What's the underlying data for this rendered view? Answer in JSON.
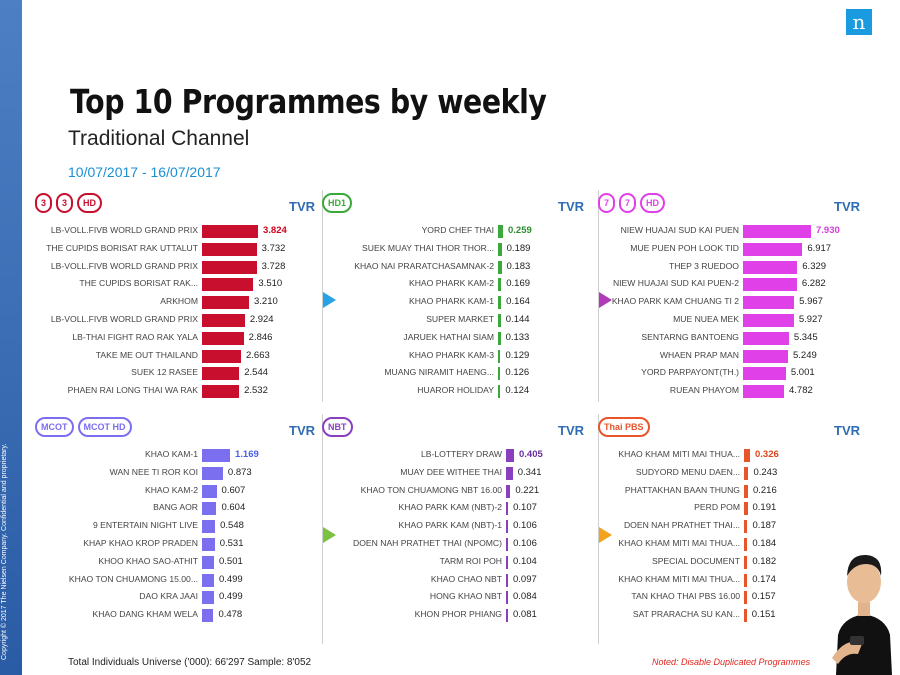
{
  "copyright": "Copyright © 2017 The Nielsen Company. Confidential and proprietary.",
  "brand_logo": "n",
  "title": "Top 10 Programmes by weekly",
  "subtitle": "Traditional Channel",
  "date_range": "10/07/2017 - 16/07/2017",
  "footer_left": "Total Individuals Universe ('000): 66'297 Sample: 8'052",
  "footer_right": "Noted: Disable Duplicated Programmes",
  "chart_data": [
    {
      "type": "bar",
      "channel_logos": [
        "3",
        "3",
        "HD"
      ],
      "value_label": "TVR",
      "color": "#c8102e",
      "first_value_color": "#d0021b",
      "categories": [
        "LB-VOLL.FIVB WORLD GRAND PRIX",
        "THE CUPIDS BORISAT RAK UTTALUT",
        "LB-VOLL.FIVB WORLD GRAND PRIX",
        "THE CUPIDS BORISAT RAK...",
        "ARKHOM",
        "LB-VOLL.FIVB WORLD GRAND PRIX",
        "LB-THAI FIGHT RAO RAK YALA",
        "TAKE ME OUT THAILAND",
        "SUEK 12 RASEE",
        "PHAEN RAI LONG THAI WA RAK"
      ],
      "values": [
        3.824,
        3.732,
        3.728,
        3.51,
        3.21,
        2.924,
        2.846,
        2.663,
        2.544,
        2.532
      ],
      "labels": [
        "3.824",
        "3.732",
        "3.728",
        "3.510",
        "3.210",
        "2.924",
        "2.846",
        "2.663",
        "2.544",
        "2.532"
      ]
    },
    {
      "type": "bar",
      "channel_logos": [
        "HD1"
      ],
      "value_label": "TVR",
      "color": "#3aa83a",
      "first_value_color": "#2e8b2e",
      "categories": [
        "YORD CHEF THAI",
        "SUEK MUAY THAI THOR THOR...",
        "KHAO NAI PRARATCHASAMNAK-2",
        "KHAO PHARK KAM-2",
        "KHAO PHARK KAM-1",
        "SUPER MARKET",
        "JARUEK HATHAI SIAM",
        "KHAO PHARK KAM-3",
        "MUANG NIRAMIT HAENG...",
        "HUAROR HOLIDAY"
      ],
      "values": [
        0.259,
        0.189,
        0.183,
        0.169,
        0.164,
        0.144,
        0.133,
        0.129,
        0.126,
        0.124
      ],
      "labels": [
        "0.259",
        "0.189",
        "0.183",
        "0.169",
        "0.164",
        "0.144",
        "0.133",
        "0.129",
        "0.126",
        "0.124"
      ]
    },
    {
      "type": "bar",
      "channel_logos": [
        "7",
        "7",
        "HD"
      ],
      "value_label": "TVR",
      "color": "#e040e8",
      "first_value_color": "#d43fd9",
      "categories": [
        "NIEW HUAJAI SUD KAI PUEN",
        "MUE PUEN POH LOOK TID",
        "THEP 3 RUEDOO",
        "NIEW HUAJAI SUD KAI PUEN-2",
        "KHAO PARK KAM CHUANG TI 2",
        "MUE NUEA MEK",
        "SENTARNG BANTOENG",
        "WHAEN PRAP MAN",
        "YORD PARPAYONT(TH.)",
        "RUEAN PHAYOM"
      ],
      "values": [
        7.93,
        6.917,
        6.329,
        6.282,
        5.967,
        5.927,
        5.345,
        5.249,
        5.001,
        4.782
      ],
      "labels": [
        "7.930",
        "6.917",
        "6.329",
        "6.282",
        "5.967",
        "5.927",
        "5.345",
        "5.249",
        "5.001",
        "4.782"
      ]
    },
    {
      "type": "bar",
      "channel_logos": [
        "MCOT",
        "MCOT HD"
      ],
      "value_label": "TVR",
      "color": "#7b6ff0",
      "first_value_color": "#4a5ee8",
      "categories": [
        "KHAO KAM-1",
        "WAN NEE TI ROR KOI",
        "KHAO KAM-2",
        "BANG AOR",
        "9 ENTERTAIN NIGHT LIVE",
        "KHAP KHAO KROP PRADEN",
        "KHOO KHAO SAO-ATHIT",
        "KHAO TON CHUAMONG 15.00...",
        "DAO KRA JAAI",
        "KHAO DANG KHAM WELA"
      ],
      "values": [
        1.169,
        0.873,
        0.607,
        0.604,
        0.548,
        0.531,
        0.501,
        0.499,
        0.499,
        0.478
      ],
      "labels": [
        "1.169",
        "0.873",
        "0.607",
        "0.604",
        "0.548",
        "0.531",
        "0.501",
        "0.499",
        "0.499",
        "0.478"
      ]
    },
    {
      "type": "bar",
      "channel_logos": [
        "NBT"
      ],
      "value_label": "TVR",
      "color": "#8a3fbf",
      "first_value_color": "#6a2ea0",
      "categories": [
        "LB-LOTTERY DRAW",
        "MUAY DEE WITHEE THAI",
        "KHAO TON CHUAMONG NBT 16.00",
        "KHAO PARK KAM (NBT)-2",
        "KHAO PARK KAM (NBT)-1",
        "DOEN NAH PRATHET THAI (NPOMC)",
        "TARM ROI POH",
        "KHAO CHAO NBT",
        "HONG KHAO NBT",
        "KHON PHOR PHIANG"
      ],
      "values": [
        0.405,
        0.341,
        0.221,
        0.107,
        0.106,
        0.106,
        0.104,
        0.097,
        0.084,
        0.081
      ],
      "labels": [
        "0.405",
        "0.341",
        "0.221",
        "0.107",
        "0.106",
        "0.106",
        "0.104",
        "0.097",
        "0.084",
        "0.081"
      ]
    },
    {
      "type": "bar",
      "channel_logos": [
        "Thai PBS"
      ],
      "value_label": "TVR",
      "color": "#e8552b",
      "first_value_color": "#e0441a",
      "categories": [
        "KHAO KHAM MITI MAI THUA...",
        "SUDYORD MENU DAEN...",
        "PHATTAKHAN BAAN THUNG",
        "PERD POM",
        "DOEN NAH PRATHET THAI...",
        "KHAO KHAM MITI MAI THUA...",
        "SPECIAL DOCUMENT",
        "KHAO KHAM MITI MAI THUA...",
        "TAN KHAO THAI PBS 16.00",
        "SAT PRARACHA SU KAN..."
      ],
      "values": [
        0.326,
        0.243,
        0.216,
        0.191,
        0.187,
        0.184,
        0.182,
        0.174,
        0.157,
        0.151
      ],
      "labels": [
        "0.326",
        "0.243",
        "0.216",
        "0.191",
        "0.187",
        "0.184",
        "0.182",
        "0.174",
        "0.157",
        "0.151"
      ]
    }
  ]
}
